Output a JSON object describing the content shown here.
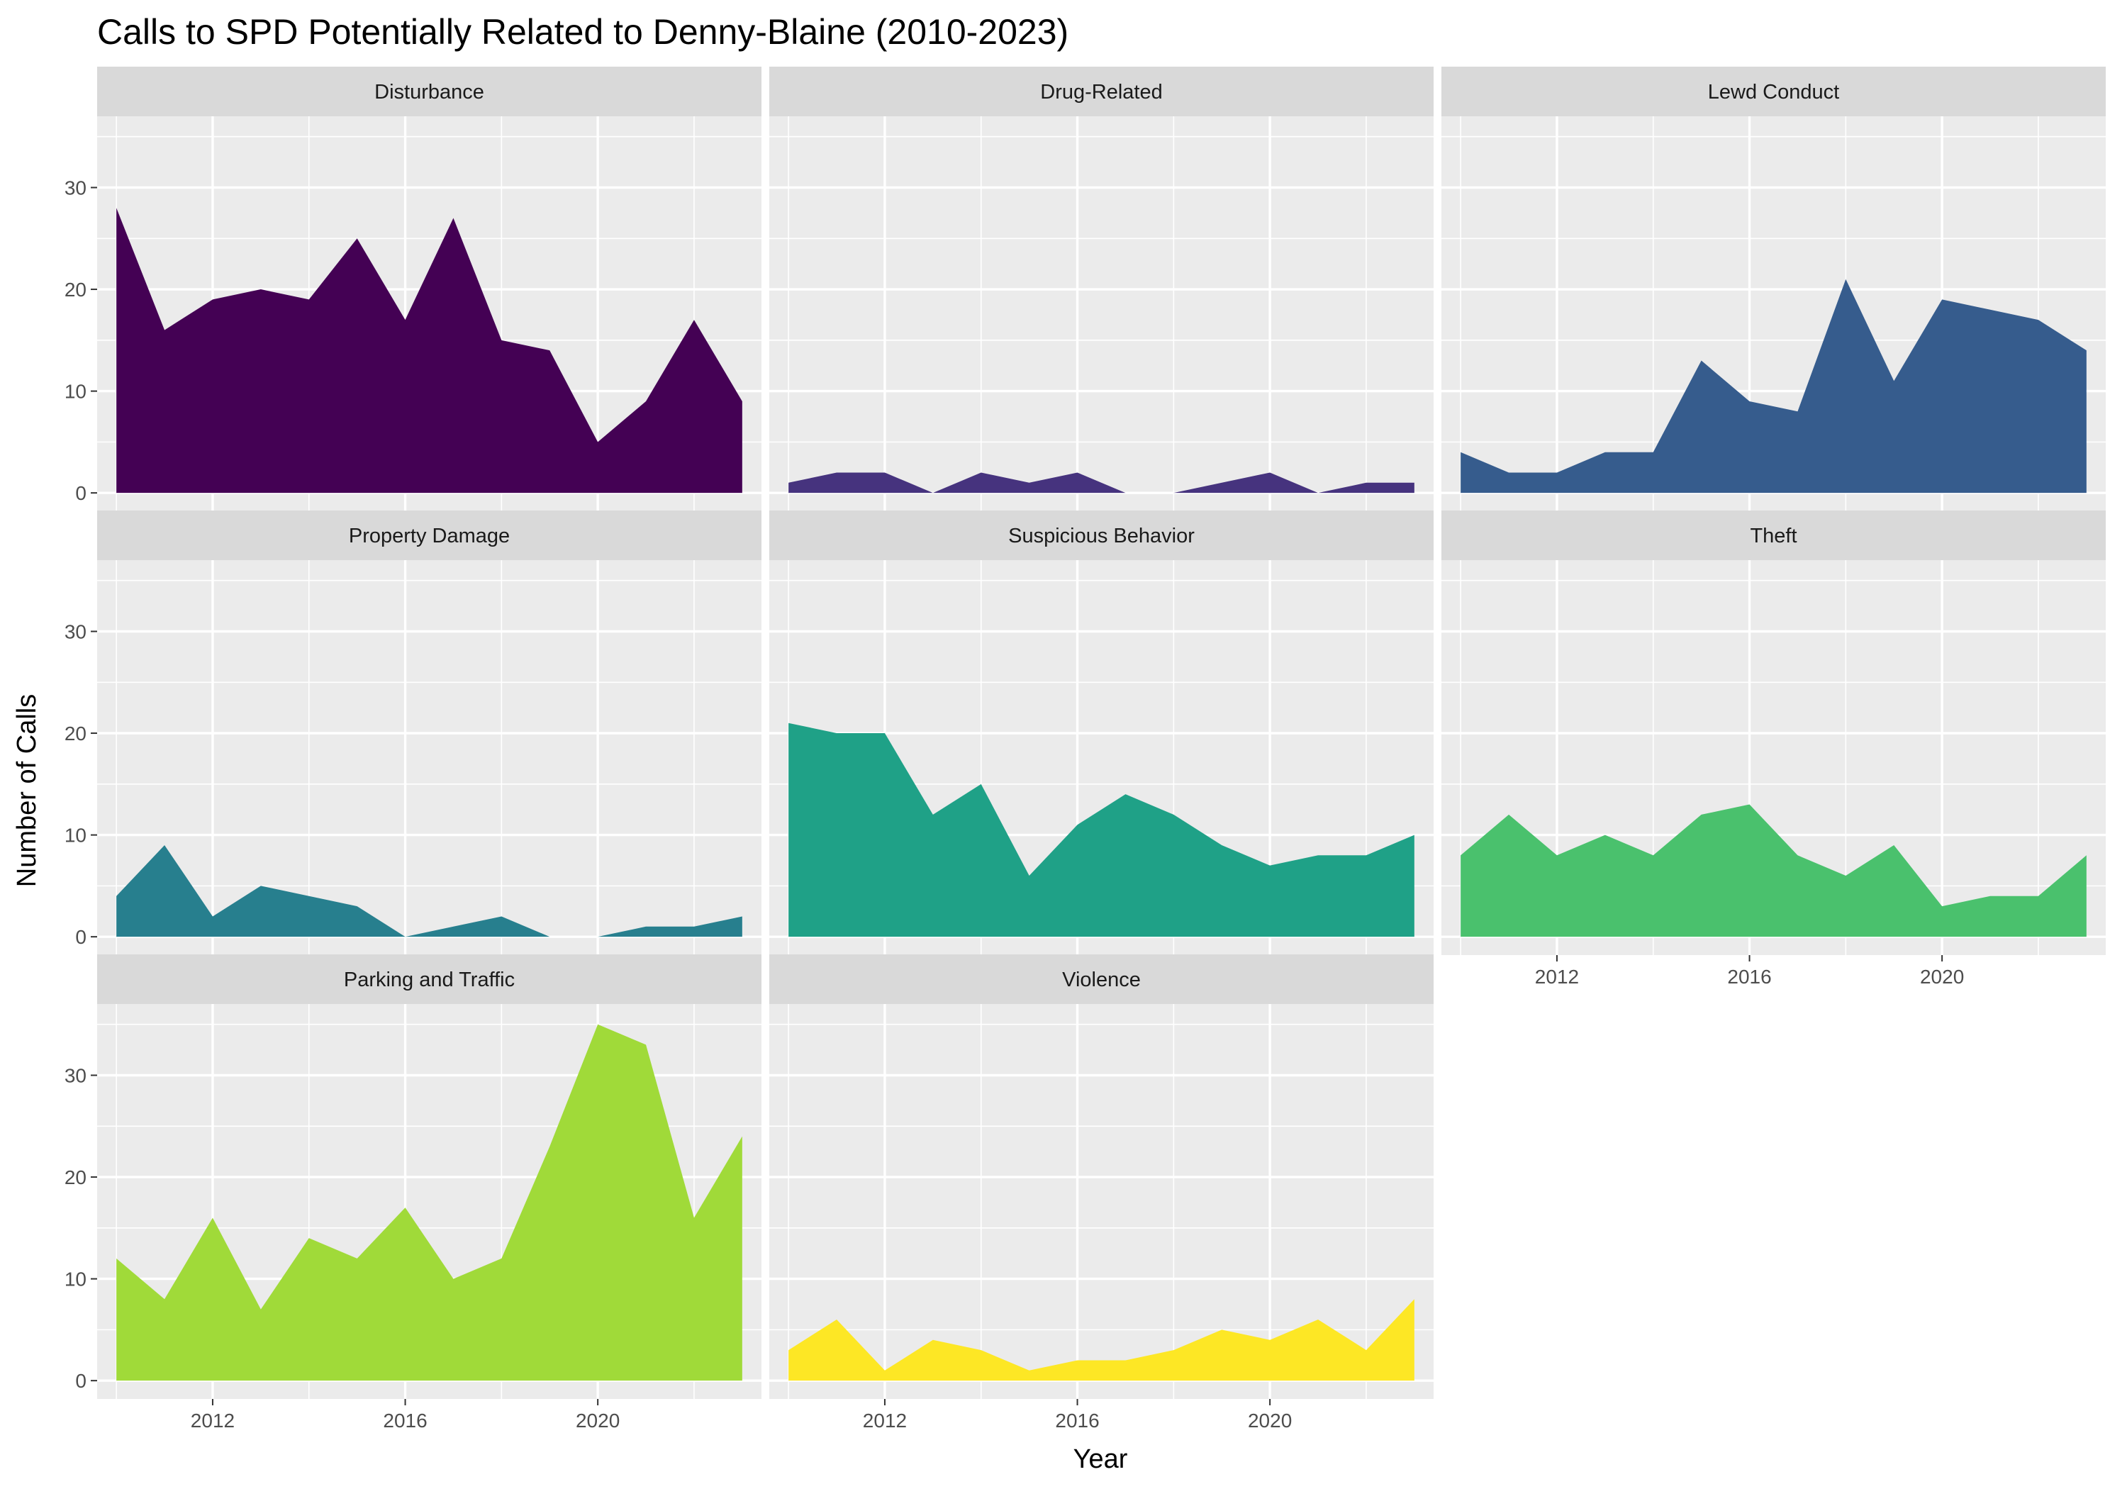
{
  "chart_data": {
    "type": "area",
    "title": "Calls to SPD Potentially Related to Denny-Blaine (2010-2023)",
    "xlabel": "Year",
    "ylabel": "Number of Calls",
    "x": [
      2010,
      2011,
      2012,
      2013,
      2014,
      2015,
      2016,
      2017,
      2018,
      2019,
      2020,
      2021,
      2022,
      2023
    ],
    "xlim": [
      2009.6,
      2023.4
    ],
    "ylim": [
      -1.8,
      37
    ],
    "x_ticks": [
      "2012",
      "2016",
      "2020"
    ],
    "y_ticks": [
      "0",
      "10",
      "20",
      "30"
    ],
    "grid": true,
    "legend": "none",
    "panels": [
      {
        "name": "Disturbance",
        "color": "#440154",
        "values": [
          28,
          16,
          19,
          20,
          19,
          25,
          17,
          27,
          15,
          14,
          5,
          9,
          17,
          9
        ]
      },
      {
        "name": "Drug-Related",
        "color": "#46337E",
        "values": [
          1,
          2,
          2,
          0,
          2,
          1,
          2,
          0,
          0,
          1,
          2,
          0,
          1,
          1
        ]
      },
      {
        "name": "Lewd Conduct",
        "color": "#365C8D",
        "values": [
          4,
          2,
          2,
          4,
          4,
          13,
          9,
          8,
          21,
          11,
          19,
          18,
          17,
          14
        ]
      },
      {
        "name": "Property Damage",
        "color": "#277F8E",
        "values": [
          4,
          9,
          2,
          5,
          4,
          3,
          0,
          1,
          2,
          0,
          0,
          1,
          1,
          2
        ]
      },
      {
        "name": "Suspicious Behavior",
        "color": "#1FA187",
        "values": [
          21,
          20,
          20,
          12,
          15,
          6,
          11,
          14,
          12,
          9,
          7,
          8,
          8,
          10
        ]
      },
      {
        "name": "Theft",
        "color": "#4AC16D",
        "values": [
          8,
          12,
          8,
          10,
          8,
          12,
          13,
          8,
          6,
          9,
          3,
          4,
          4,
          8
        ]
      },
      {
        "name": "Parking and Traffic",
        "color": "#A0DA39",
        "values": [
          12,
          8,
          16,
          7,
          14,
          12,
          17,
          10,
          12,
          23,
          35,
          33,
          16,
          24
        ]
      },
      {
        "name": "Violence",
        "color": "#FDE725",
        "values": [
          3,
          6,
          1,
          4,
          3,
          1,
          2,
          2,
          3,
          5,
          4,
          6,
          3,
          8
        ]
      }
    ]
  }
}
